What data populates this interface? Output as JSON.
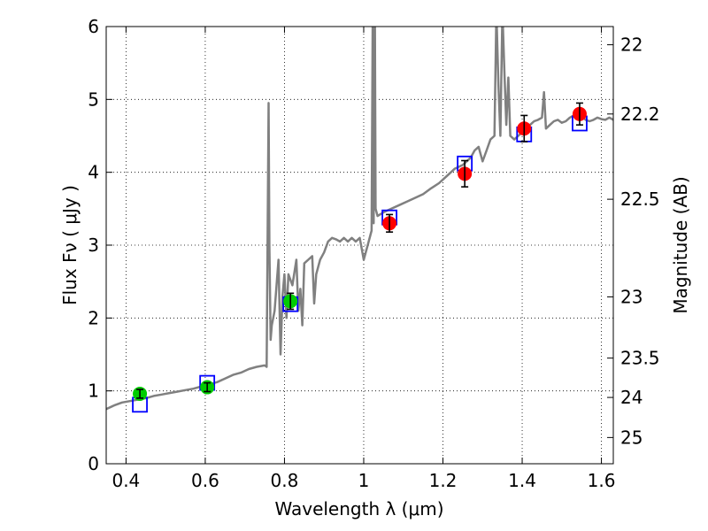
{
  "chart_data": {
    "type": "scatter",
    "xlabel": "Wavelength  λ (μm)",
    "ylabel": "Flux  Fν  ( μJy )",
    "y2label": "Magnitude (AB)",
    "xlim": [
      0.35,
      1.63
    ],
    "ylim": [
      0,
      6
    ],
    "x_ticks": [
      0.4,
      0.6,
      0.8,
      1.0,
      1.2,
      1.4,
      1.6
    ],
    "x_tick_labels": [
      "0.4",
      "0.6",
      "0.8",
      "1",
      "1.2",
      "1.4",
      "1.6"
    ],
    "y_ticks": [
      0,
      1,
      2,
      3,
      4,
      5,
      6
    ],
    "y_tick_labels": [
      "0",
      "1",
      "2",
      "3",
      "4",
      "5",
      "6"
    ],
    "y2_ticks": [
      {
        "flux": 5.75,
        "label": "22"
      },
      {
        "flux": 4.8,
        "label": "22.2"
      },
      {
        "flux": 3.63,
        "label": "22.5"
      },
      {
        "flux": 2.29,
        "label": "23"
      },
      {
        "flux": 1.45,
        "label": "23.5"
      },
      {
        "flux": 0.91,
        "label": "24"
      },
      {
        "flux": 0.36,
        "label": "25"
      }
    ],
    "grid": true,
    "colors": {
      "spectrum": "#808080",
      "model_box": "#0000ff",
      "optical_points": "#00cc00",
      "nir_points": "#ff0000",
      "errorbar": "#000000"
    },
    "series": [
      {
        "role": "model spectrum",
        "style": "line",
        "x": [
          0.35,
          0.37,
          0.39,
          0.41,
          0.43,
          0.45,
          0.47,
          0.49,
          0.51,
          0.53,
          0.55,
          0.57,
          0.59,
          0.61,
          0.63,
          0.65,
          0.67,
          0.69,
          0.71,
          0.73,
          0.75,
          0.755,
          0.76,
          0.762,
          0.765,
          0.768,
          0.775,
          0.785,
          0.79,
          0.795,
          0.8,
          0.805,
          0.81,
          0.82,
          0.83,
          0.835,
          0.84,
          0.845,
          0.85,
          0.86,
          0.87,
          0.875,
          0.88,
          0.885,
          0.89,
          0.9,
          0.91,
          0.92,
          0.93,
          0.94,
          0.95,
          0.96,
          0.97,
          0.98,
          0.99,
          1.0,
          1.01,
          1.02,
          1.023,
          1.025,
          1.028,
          1.03,
          1.035,
          1.05,
          1.07,
          1.09,
          1.11,
          1.13,
          1.15,
          1.17,
          1.19,
          1.21,
          1.23,
          1.25,
          1.27,
          1.28,
          1.29,
          1.3,
          1.31,
          1.32,
          1.33,
          1.335,
          1.34,
          1.345,
          1.35,
          1.355,
          1.36,
          1.365,
          1.37,
          1.38,
          1.39,
          1.4,
          1.41,
          1.42,
          1.43,
          1.44,
          1.45,
          1.455,
          1.46,
          1.47,
          1.48,
          1.49,
          1.5,
          1.51,
          1.52,
          1.53,
          1.54,
          1.55,
          1.56,
          1.57,
          1.58,
          1.59,
          1.6,
          1.61,
          1.62,
          1.63
        ],
        "y": [
          0.75,
          0.8,
          0.84,
          0.86,
          0.88,
          0.9,
          0.93,
          0.95,
          0.97,
          0.99,
          1.01,
          1.03,
          1.06,
          1.09,
          1.12,
          1.17,
          1.22,
          1.25,
          1.3,
          1.33,
          1.35,
          1.33,
          4.95,
          3.0,
          1.7,
          1.9,
          2.1,
          2.8,
          1.5,
          2.3,
          2.6,
          2.0,
          2.6,
          2.45,
          2.8,
          2.1,
          2.4,
          1.9,
          2.75,
          2.8,
          2.85,
          2.2,
          2.6,
          2.7,
          2.8,
          2.9,
          3.05,
          3.1,
          3.08,
          3.05,
          3.1,
          3.05,
          3.1,
          3.05,
          3.1,
          2.8,
          3.0,
          3.2,
          6.5,
          3.3,
          6.5,
          3.5,
          3.4,
          3.45,
          3.5,
          3.55,
          3.6,
          3.65,
          3.7,
          3.78,
          3.85,
          3.95,
          4.05,
          4.1,
          4.2,
          4.3,
          4.35,
          4.15,
          4.3,
          4.45,
          4.5,
          6.2,
          5.2,
          4.5,
          6.2,
          5.4,
          4.65,
          5.3,
          4.5,
          4.45,
          4.5,
          4.55,
          4.6,
          4.65,
          4.7,
          4.72,
          4.75,
          5.1,
          4.6,
          4.65,
          4.7,
          4.72,
          4.68,
          4.7,
          4.75,
          4.78,
          4.8,
          4.78,
          4.72,
          4.7,
          4.72,
          4.75,
          4.73,
          4.72,
          4.75,
          4.72
        ]
      },
      {
        "role": "model band flux",
        "style": "open square",
        "x": [
          0.435,
          0.605,
          0.815,
          1.065,
          1.255,
          1.405,
          1.545
        ],
        "y": [
          0.81,
          1.11,
          2.19,
          3.38,
          4.12,
          4.52,
          4.67
        ]
      },
      {
        "role": "optical photometry",
        "style": "filled circle",
        "x": [
          0.435,
          0.605,
          0.815
        ],
        "y": [
          0.96,
          1.05,
          2.23
        ],
        "yerr": [
          0.06,
          0.06,
          0.11
        ]
      },
      {
        "role": "near-IR photometry",
        "style": "filled circle",
        "x": [
          1.065,
          1.255,
          1.405,
          1.545
        ],
        "y": [
          3.3,
          3.98,
          4.6,
          4.8
        ],
        "yerr": [
          0.12,
          0.18,
          0.18,
          0.15
        ]
      }
    ]
  }
}
